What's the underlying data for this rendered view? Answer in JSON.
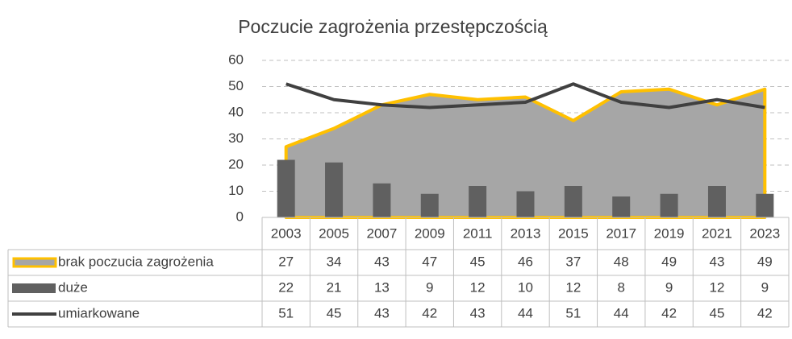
{
  "chart_data": {
    "type": "combo",
    "title": "Poczucie zagrożenia przestępczością",
    "categories": [
      "2003",
      "2005",
      "2007",
      "2009",
      "2011",
      "2013",
      "2015",
      "2017",
      "2019",
      "2021",
      "2023"
    ],
    "series": [
      {
        "name": "brak poczucia zagrożenia",
        "type": "area",
        "color": "#a6a6a6",
        "edge": "#ffc000",
        "values": [
          27,
          34,
          43,
          47,
          45,
          46,
          37,
          48,
          49,
          43,
          49
        ]
      },
      {
        "name": "duże",
        "type": "bar",
        "color": "#606060",
        "values": [
          22,
          21,
          13,
          9,
          12,
          10,
          12,
          8,
          9,
          12,
          9
        ]
      },
      {
        "name": "umiarkowane",
        "type": "line",
        "color": "#404040",
        "values": [
          51,
          45,
          43,
          42,
          43,
          44,
          51,
          44,
          42,
          45,
          42
        ]
      }
    ],
    "ylim": [
      0,
      60
    ],
    "yticks": [
      0,
      10,
      20,
      30,
      40,
      50,
      60
    ],
    "grid": true,
    "data_table": true
  }
}
